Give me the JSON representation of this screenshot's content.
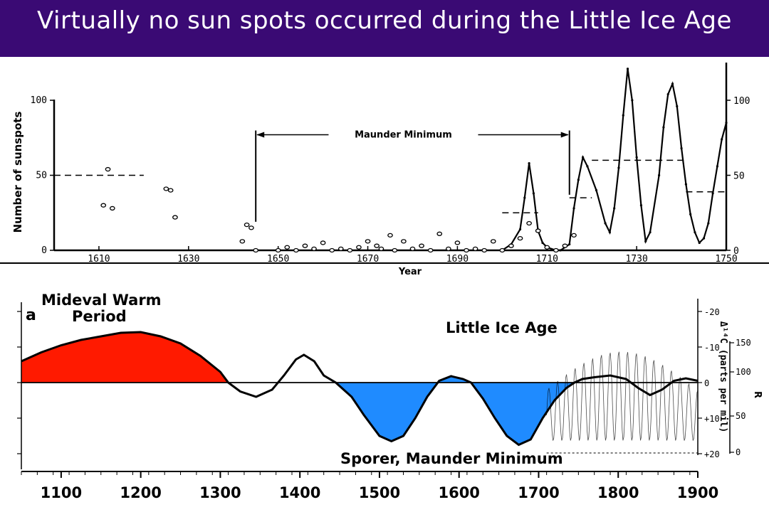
{
  "header": {
    "title": "Virtually no sun spots occurred during the Little Ice Age"
  },
  "colors": {
    "header_bg": "#3a0a74",
    "warm": "#ff1a00",
    "cold": "#1f8bff"
  },
  "chart_data": [
    {
      "type": "line",
      "xlabel": "Year",
      "ylabel": "Number of sunspots",
      "xlim": [
        1600,
        1750
      ],
      "ylim": [
        0,
        100
      ],
      "x_ticks": [
        1610,
        1630,
        1650,
        1670,
        1690,
        1710,
        1730,
        1750
      ],
      "y_ticks_left": [
        0,
        50,
        100
      ],
      "y_ticks_right": [
        0,
        50,
        100
      ],
      "annotation": "Maunder Minimum",
      "maunder_range": [
        1645,
        1715
      ],
      "scatter_points": [
        [
          1611,
          30
        ],
        [
          1612,
          54
        ],
        [
          1613,
          28
        ],
        [
          1625,
          41
        ],
        [
          1626,
          40
        ],
        [
          1627,
          22
        ],
        [
          1642,
          6
        ],
        [
          1643,
          17
        ],
        [
          1644,
          15
        ],
        [
          1645,
          0
        ],
        [
          1650,
          0
        ],
        [
          1652,
          2
        ],
        [
          1654,
          0
        ],
        [
          1656,
          3
        ],
        [
          1658,
          1
        ],
        [
          1660,
          5
        ],
        [
          1662,
          0
        ],
        [
          1664,
          1
        ],
        [
          1666,
          0
        ],
        [
          1668,
          2
        ],
        [
          1670,
          6
        ],
        [
          1672,
          3
        ],
        [
          1673,
          1
        ],
        [
          1675,
          10
        ],
        [
          1676,
          0
        ],
        [
          1678,
          6
        ],
        [
          1680,
          1
        ],
        [
          1682,
          3
        ],
        [
          1684,
          0
        ],
        [
          1686,
          11
        ],
        [
          1688,
          1
        ],
        [
          1690,
          5
        ],
        [
          1692,
          0
        ],
        [
          1694,
          1
        ],
        [
          1696,
          0
        ],
        [
          1698,
          6
        ],
        [
          1700,
          0
        ],
        [
          1702,
          3
        ],
        [
          1704,
          8
        ],
        [
          1706,
          18
        ],
        [
          1708,
          13
        ],
        [
          1710,
          2
        ],
        [
          1712,
          0
        ],
        [
          1714,
          3
        ],
        [
          1716,
          10
        ]
      ],
      "cycle_line": [
        [
          1700,
          0
        ],
        [
          1702,
          4
        ],
        [
          1704,
          14
        ],
        [
          1705,
          35
        ],
        [
          1706,
          58
        ],
        [
          1707,
          38
        ],
        [
          1708,
          13
        ],
        [
          1709,
          5
        ],
        [
          1710,
          2
        ],
        [
          1712,
          0
        ],
        [
          1713,
          0
        ],
        [
          1715,
          4
        ],
        [
          1716,
          28
        ],
        [
          1717,
          47
        ],
        [
          1718,
          62
        ],
        [
          1719,
          56
        ],
        [
          1721,
          40
        ],
        [
          1723,
          18
        ],
        [
          1724,
          12
        ],
        [
          1725,
          28
        ],
        [
          1726,
          55
        ],
        [
          1727,
          90
        ],
        [
          1728,
          121
        ],
        [
          1729,
          100
        ],
        [
          1730,
          62
        ],
        [
          1731,
          30
        ],
        [
          1732,
          6
        ],
        [
          1733,
          12
        ],
        [
          1735,
          50
        ],
        [
          1736,
          82
        ],
        [
          1737,
          104
        ],
        [
          1738,
          111
        ],
        [
          1739,
          96
        ],
        [
          1740,
          68
        ],
        [
          1741,
          44
        ],
        [
          1742,
          24
        ],
        [
          1743,
          12
        ],
        [
          1744,
          5
        ],
        [
          1745,
          8
        ],
        [
          1746,
          18
        ],
        [
          1747,
          38
        ],
        [
          1748,
          56
        ],
        [
          1749,
          74
        ],
        [
          1750,
          85
        ]
      ],
      "dashed_means": [
        {
          "x": [
            1600,
            1620
          ],
          "y": 50
        },
        {
          "x": [
            1700,
            1708
          ],
          "y": 25
        },
        {
          "x": [
            1715,
            1720
          ],
          "y": 35
        },
        {
          "x": [
            1720,
            1741
          ],
          "y": 60
        },
        {
          "x": [
            1741,
            1750
          ],
          "y": 39
        }
      ]
    },
    {
      "type": "area",
      "xlim": [
        1050,
        1900
      ],
      "ylim": [
        20,
        -20
      ],
      "x_ticks": [
        1100,
        1200,
        1300,
        1400,
        1500,
        1600,
        1700,
        1800,
        1900
      ],
      "y_ticks": [
        20,
        10,
        0,
        -10,
        -20
      ],
      "y_tick_labels_right": [
        "-20",
        "-10",
        "0",
        "+10",
        "+20"
      ],
      "right_axis_label": "Δ¹⁴C (parts per mil)",
      "r_axis_label": "R",
      "r_ticks": [
        "150",
        "100",
        "50",
        "0"
      ],
      "panel_label": "a",
      "labels": {
        "warm": [
          "Mideval Warm",
          "Period"
        ],
        "lia": "Little Ice Age",
        "minimum": "Sporer, Maunder Minimum"
      },
      "curve": [
        [
          1050,
          -6
        ],
        [
          1075,
          -8.5
        ],
        [
          1100,
          -10.5
        ],
        [
          1125,
          -12
        ],
        [
          1150,
          -13
        ],
        [
          1175,
          -14
        ],
        [
          1200,
          -14.2
        ],
        [
          1225,
          -13
        ],
        [
          1250,
          -11
        ],
        [
          1275,
          -7.5
        ],
        [
          1300,
          -3
        ],
        [
          1310,
          0
        ],
        [
          1325,
          2.5
        ],
        [
          1345,
          4
        ],
        [
          1365,
          2
        ],
        [
          1380,
          -2
        ],
        [
          1395,
          -6.5
        ],
        [
          1405,
          -7.8
        ],
        [
          1418,
          -6
        ],
        [
          1430,
          -2
        ],
        [
          1445,
          0
        ],
        [
          1465,
          4
        ],
        [
          1480,
          9
        ],
        [
          1500,
          15
        ],
        [
          1515,
          16.5
        ],
        [
          1530,
          15
        ],
        [
          1545,
          10
        ],
        [
          1560,
          4
        ],
        [
          1575,
          -0.5
        ],
        [
          1590,
          -1.8
        ],
        [
          1605,
          -1
        ],
        [
          1615,
          0
        ],
        [
          1630,
          4.5
        ],
        [
          1645,
          10
        ],
        [
          1660,
          15
        ],
        [
          1675,
          17.5
        ],
        [
          1690,
          16
        ],
        [
          1705,
          10
        ],
        [
          1720,
          5
        ],
        [
          1735,
          1.5
        ],
        [
          1745,
          0
        ],
        [
          1755,
          -1
        ],
        [
          1770,
          -1.5
        ],
        [
          1790,
          -2
        ],
        [
          1810,
          -1
        ],
        [
          1825,
          1.5
        ],
        [
          1840,
          3.5
        ],
        [
          1855,
          2
        ],
        [
          1870,
          -0.5
        ],
        [
          1885,
          -1.2
        ],
        [
          1900,
          -0.5
        ]
      ]
    }
  ]
}
